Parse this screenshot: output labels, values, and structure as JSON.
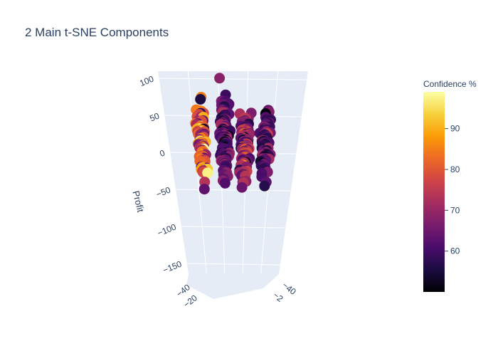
{
  "chart_data": {
    "type": "scatter3d",
    "title": "2 Main t-SNE Components",
    "axes": {
      "z": {
        "label": "Profit",
        "ticks": [
          "100",
          "50",
          "0",
          "−50",
          "−100",
          "−150"
        ],
        "tick_values": [
          100,
          50,
          0,
          -50,
          -100,
          -150
        ]
      },
      "x": {
        "label": "",
        "ticks": [
          "−40",
          "−20"
        ]
      },
      "y": {
        "label": "",
        "ticks": [
          "−40",
          "−2"
        ]
      }
    },
    "colorbar": {
      "title": "Confidence %",
      "ticks": [
        "90",
        "80",
        "70",
        "60"
      ],
      "tick_values": [
        90,
        80,
        70,
        60
      ],
      "range": [
        50,
        99
      ],
      "colorscale": "Inferno",
      "stops": [
        "#000004",
        "#1b0c41",
        "#4a0c6b",
        "#781c6d",
        "#a52c60",
        "#cf4446",
        "#ed6925",
        "#fb9b06",
        "#f7d13d",
        "#fcffa4"
      ]
    },
    "scene": {
      "background": "#e5ecf6",
      "grid": true
    },
    "series": [
      {
        "marker_size": 13,
        "clusters": [
          {
            "x": -0.55,
            "z_center": 15,
            "z_spread": 70,
            "count": 110,
            "conf_bias": "high"
          },
          {
            "x": -0.15,
            "z_center": 25,
            "z_spread": 85,
            "count": 140,
            "conf_bias": "low"
          },
          {
            "x": 0.2,
            "z_center": 10,
            "z_spread": 75,
            "count": 120,
            "conf_bias": "mid"
          },
          {
            "x": 0.55,
            "z_center": 5,
            "z_spread": 65,
            "count": 90,
            "conf_bias": "low"
          }
        ]
      }
    ]
  }
}
